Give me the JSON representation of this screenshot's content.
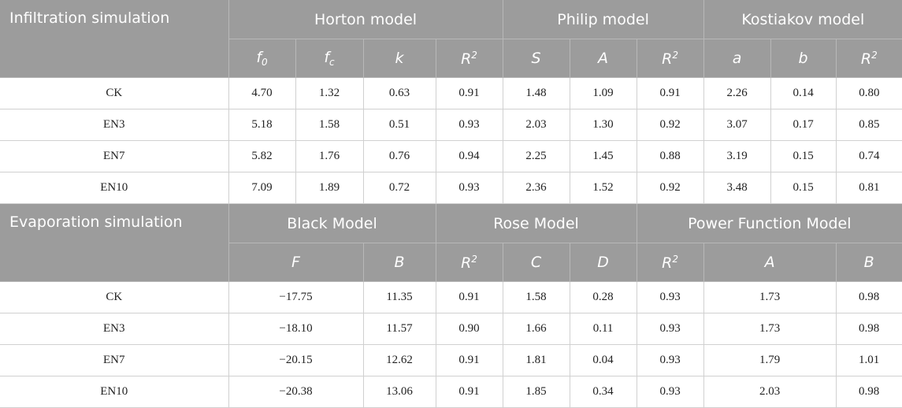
{
  "infiltration": {
    "title": "Infiltration simulation",
    "groups": [
      "Horton model",
      "Philip model",
      "Kostiakov model"
    ],
    "params": {
      "horton": [
        {
          "base": "f",
          "sub": "0"
        },
        {
          "base": "f",
          "sub": "c"
        },
        {
          "base": "k"
        },
        {
          "base": "R",
          "sup": "2"
        }
      ],
      "philip": [
        {
          "base": "S"
        },
        {
          "base": "A"
        },
        {
          "base": "R",
          "sup": "2"
        }
      ],
      "kostiakov": [
        {
          "base": "a"
        },
        {
          "base": "b"
        },
        {
          "base": "R",
          "sup": "2"
        }
      ]
    },
    "rows": [
      {
        "label": "CK",
        "values": [
          "4.70",
          "1.32",
          "0.63",
          "0.91",
          "1.48",
          "1.09",
          "0.91",
          "2.26",
          "0.14",
          "0.80"
        ]
      },
      {
        "label": "EN3",
        "values": [
          "5.18",
          "1.58",
          "0.51",
          "0.93",
          "2.03",
          "1.30",
          "0.92",
          "3.07",
          "0.17",
          "0.85"
        ]
      },
      {
        "label": "EN7",
        "values": [
          "5.82",
          "1.76",
          "0.76",
          "0.94",
          "2.25",
          "1.45",
          "0.88",
          "3.19",
          "0.15",
          "0.74"
        ]
      },
      {
        "label": "EN10",
        "values": [
          "7.09",
          "1.89",
          "0.72",
          "0.93",
          "2.36",
          "1.52",
          "0.92",
          "3.48",
          "0.15",
          "0.81"
        ]
      }
    ]
  },
  "evaporation": {
    "title": "Evaporation simulation",
    "groups": [
      "Black Model",
      "Rose Model",
      "Power Function Model"
    ],
    "params": {
      "black": [
        {
          "base": "F"
        },
        {
          "base": "B"
        },
        {
          "base": "R",
          "sup": "2"
        }
      ],
      "rose": [
        {
          "base": "C"
        },
        {
          "base": "D"
        },
        {
          "base": "R",
          "sup": "2"
        }
      ],
      "power": [
        {
          "base": "A"
        },
        {
          "base": "B"
        },
        {
          "base": "R",
          "sup": "2"
        }
      ]
    },
    "rows": [
      {
        "label": "CK",
        "values": [
          "−17.75",
          "11.35",
          "0.91",
          "1.58",
          "0.28",
          "0.93",
          "1.73",
          "0.98",
          "0.93"
        ]
      },
      {
        "label": "EN3",
        "values": [
          "−18.10",
          "11.57",
          "0.90",
          "1.66",
          "0.11",
          "0.93",
          "1.73",
          "0.98",
          "0.93"
        ]
      },
      {
        "label": "EN7",
        "values": [
          "−20.15",
          "12.62",
          "0.91",
          "1.81",
          "0.04",
          "0.93",
          "1.79",
          "1.01",
          "0.93"
        ]
      },
      {
        "label": "EN10",
        "values": [
          "−20.38",
          "13.06",
          "0.91",
          "1.85",
          "0.34",
          "0.93",
          "2.03",
          "0.98",
          "0.93"
        ]
      }
    ]
  }
}
